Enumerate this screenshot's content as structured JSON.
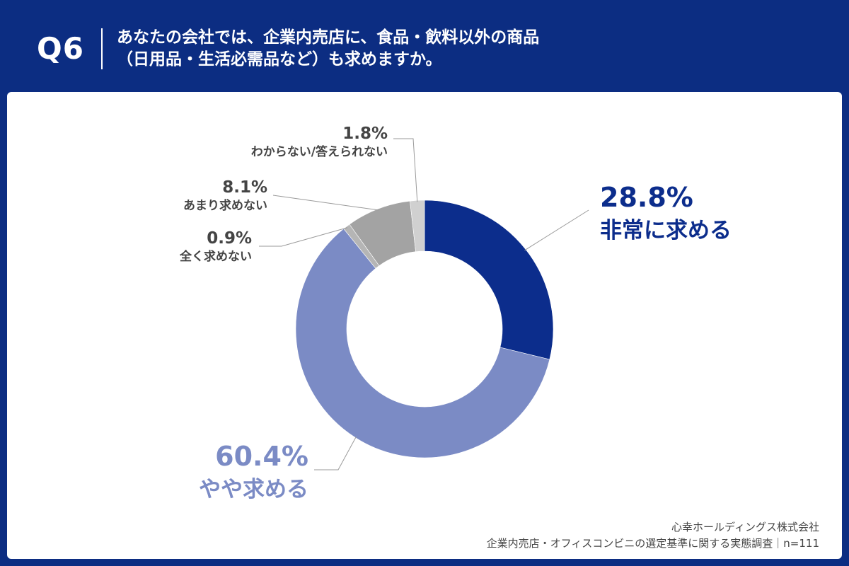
{
  "header": {
    "question_number": "Q6",
    "question_line1": "あなたの会社では、企業内売店に、食品・飲料以外の商品",
    "question_line2": "（日用品・生活必需品など）も求めますか。"
  },
  "chart_data": {
    "type": "pie",
    "donut": true,
    "categories": [
      "非常に求める",
      "やや求める",
      "全く求めない",
      "あまり求めない",
      "わからない/答えられない"
    ],
    "values": [
      28.8,
      60.4,
      0.9,
      8.1,
      1.8
    ],
    "value_labels": [
      "28.8%",
      "60.4%",
      "0.9%",
      "8.1%",
      "1.8%"
    ],
    "colors": [
      "#0c2d8c",
      "#7b8bc5",
      "#b5b5b5",
      "#a3a3a3",
      "#d0d0d0"
    ],
    "start_angle": "12 o'clock",
    "direction": "clockwise"
  },
  "footer": {
    "company": "心幸ホールディングス株式会社",
    "survey": "企業内売店・オフィスコンビニの選定基準に関する実態調査｜n=111"
  }
}
